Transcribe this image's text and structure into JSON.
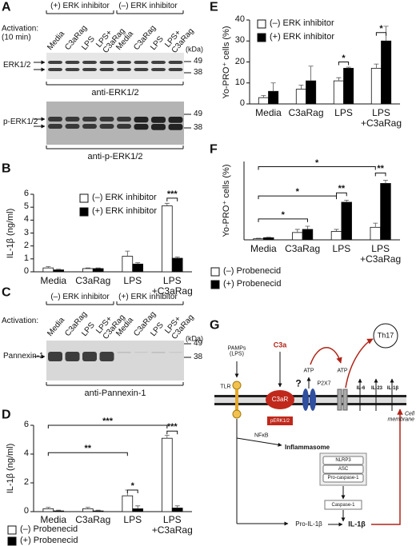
{
  "panel_labels": [
    "A",
    "B",
    "C",
    "D",
    "E",
    "F",
    "G"
  ],
  "blots": [
    {
      "header_left": "(+) ERK inhibitor",
      "header_right": "(–) ERK inhibitor",
      "activation": "Activation:\n(10 min)",
      "lanes": [
        "Media",
        "C3aRag",
        "LPS",
        "LPS+\nC3aRag",
        "Media",
        "C3aRag",
        "LPS",
        "LPS+\nC3aRag"
      ],
      "kda": "(kDa)",
      "rows": [
        {
          "label": "ERK1/2",
          "markers": [
            "49",
            "38"
          ],
          "antibody": "anti-ERK1/2"
        },
        {
          "label": "p-ERK1/2",
          "markers": [
            "49",
            "38"
          ],
          "antibody": "anti-p-ERK1/2"
        }
      ]
    },
    {
      "header_left": "(–) ERK inhibitor",
      "header_right": "(+) ERK inhibitor",
      "activation": "Activation:",
      "lanes": [
        "Media",
        "C3aRag",
        "LPS",
        "LPS+\nC3aRag",
        "Media",
        "C3aRag",
        "LPS",
        "LPS+\nC3aRag"
      ],
      "kda": "(kDa)",
      "rows": [
        {
          "label": "Pannexin-1",
          "markers": [
            "49",
            "38"
          ],
          "antibody": "anti-Pannexin-1"
        }
      ]
    }
  ],
  "chart_data": [
    {
      "type": "bar",
      "y_label": "IL-1β (ng/ml)",
      "categories": [
        "Media",
        "C3aRag",
        "LPS",
        "LPS\n+C3aRag"
      ],
      "series": [
        {
          "name": "(–) ERK inhibitor",
          "color": "#ffffff",
          "values": [
            0.3,
            0.25,
            1.2,
            5.1
          ],
          "errors": [
            0.1,
            0.05,
            0.4,
            0.2
          ]
        },
        {
          "name": "(+) ERK inhibitor",
          "color": "#000000",
          "values": [
            0.15,
            0.25,
            0.6,
            1.05
          ],
          "errors": [
            0.05,
            0.05,
            0.1,
            0.1
          ]
        }
      ],
      "ylim": [
        0,
        6
      ],
      "yticks": [
        0,
        1,
        2,
        3,
        4,
        5,
        6
      ],
      "legend": "upper-left",
      "annotations": [
        "***"
      ]
    },
    {
      "type": "bar",
      "y_label": "IL-1β (ng/ml)",
      "categories": [
        "Media",
        "C3aRag",
        "LPS",
        "LPS\n+C3aRag"
      ],
      "series": [
        {
          "name": "(–) Probenecid",
          "color": "#ffffff",
          "values": [
            0.2,
            0.2,
            1.1,
            5.1
          ],
          "errors": [
            0.1,
            0.1,
            0.4,
            0.2
          ]
        },
        {
          "name": "(+) Probenecid",
          "color": "#000000",
          "values": [
            0.05,
            0.05,
            0.2,
            0.25
          ],
          "errors": [
            0.05,
            0.05,
            0.2,
            0.15
          ]
        }
      ],
      "ylim": [
        0,
        6
      ],
      "yticks": [
        0,
        2,
        4,
        6
      ],
      "legend": "bottom-left",
      "annotations": [
        "***",
        "**",
        "*",
        "***"
      ]
    },
    {
      "type": "bar",
      "y_label": "Yo-PRO⁺ cells (%)",
      "categories": [
        "Media",
        "C3aRag",
        "LPS",
        "LPS\n+C3aRag"
      ],
      "series": [
        {
          "name": "(–) ERK inhibitor",
          "color": "#ffffff",
          "values": [
            3,
            7,
            11,
            17
          ],
          "errors": [
            1,
            2,
            1.5,
            2
          ]
        },
        {
          "name": "(+) ERK inhibitor",
          "color": "#000000",
          "values": [
            6,
            11,
            17,
            30
          ],
          "errors": [
            4,
            7,
            0.5,
            7
          ]
        }
      ],
      "ylim": [
        0,
        40
      ],
      "yticks": [
        0,
        10,
        20,
        30,
        40
      ],
      "legend": "upper-left",
      "annotations": [
        "*",
        "*"
      ]
    },
    {
      "type": "bar",
      "y_label": "Yo-PRO⁺ cells (%)",
      "categories": [
        "Media",
        "C3aRag",
        "LPS",
        "LPS\n+C3aRag"
      ],
      "series": [
        {
          "name": "(–) Probenecid",
          "color": "#ffffff",
          "values": [
            1,
            7,
            8,
            12
          ],
          "errors": [
            0.5,
            3,
            2,
            4
          ]
        },
        {
          "name": "(+) Probenecid",
          "color": "#000000",
          "values": [
            2,
            10,
            36,
            54
          ],
          "errors": [
            0.5,
            3,
            2,
            3
          ]
        }
      ],
      "ylim": [
        0,
        75
      ],
      "legend": "bottom-left",
      "annotations": [
        "*",
        "*",
        "*",
        "**",
        "**"
      ]
    }
  ],
  "diagram": {
    "pamps": "PAMPs\n(LPS)",
    "c3a": "C3a",
    "atp_left": "ATP",
    "atp_right": "ATP",
    "th17": "Th17",
    "tlr": "TLR",
    "c3ar": "C3aR",
    "question": "?",
    "p2x7": "P2X7",
    "il6": "IL-6",
    "il23": "IL-23",
    "il1b_top": "IL-1β",
    "membrane": "Cell\nmembrane",
    "nfkb": "NFκB",
    "inflammasome": "Inflammasome",
    "perk": "pERK1/2",
    "nlrp3": "NLRP3",
    "asc": "ASC",
    "procasp": "Pro-caspase-1",
    "casp": "Caspase-1",
    "pro_il1b": "Pro-IL-1β",
    "il1b": "IL-1β"
  }
}
